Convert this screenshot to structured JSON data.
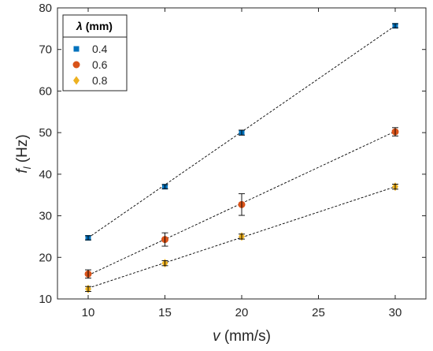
{
  "chart_data": {
    "type": "scatter",
    "xlabel": {
      "symbol": "v",
      "unit": " (mm/s)"
    },
    "ylabel": {
      "symbol": "f",
      "subscript": "l",
      "unit": " (Hz)"
    },
    "xlim": [
      8,
      32
    ],
    "ylim": [
      10,
      80
    ],
    "xticks": [
      10,
      15,
      20,
      25,
      30
    ],
    "yticks": [
      10,
      20,
      30,
      40,
      50,
      60,
      70,
      80
    ],
    "grid": false,
    "legend_position": "top-left",
    "legend": {
      "title_symbol": "λ",
      "title_unit": " (mm)"
    },
    "series": [
      {
        "name": "0.4",
        "marker": "square",
        "color": "#0072BD",
        "x": [
          10,
          15,
          20,
          30
        ],
        "y": [
          24.7,
          37.0,
          50.0,
          75.7
        ],
        "err": [
          0.5,
          0.5,
          0.6,
          0.5
        ],
        "fit": [
          [
            10,
            24.7
          ],
          [
            30,
            75.7
          ]
        ]
      },
      {
        "name": "0.6",
        "marker": "circle",
        "color": "#D95319",
        "x": [
          10,
          15,
          20,
          30
        ],
        "y": [
          16.0,
          24.3,
          32.7,
          50.2
        ],
        "err": [
          1.0,
          1.6,
          2.6,
          1.0
        ],
        "fit": [
          [
            10,
            15.7
          ],
          [
            30,
            50.3
          ]
        ]
      },
      {
        "name": "0.8",
        "marker": "diamond",
        "color": "#EDB120",
        "x": [
          10,
          15,
          20,
          30
        ],
        "y": [
          12.4,
          18.6,
          25.0,
          37.0
        ],
        "err": [
          0.6,
          0.6,
          0.6,
          0.6
        ],
        "fit": [
          [
            10,
            12.6
          ],
          [
            30,
            37.0
          ]
        ]
      }
    ]
  }
}
